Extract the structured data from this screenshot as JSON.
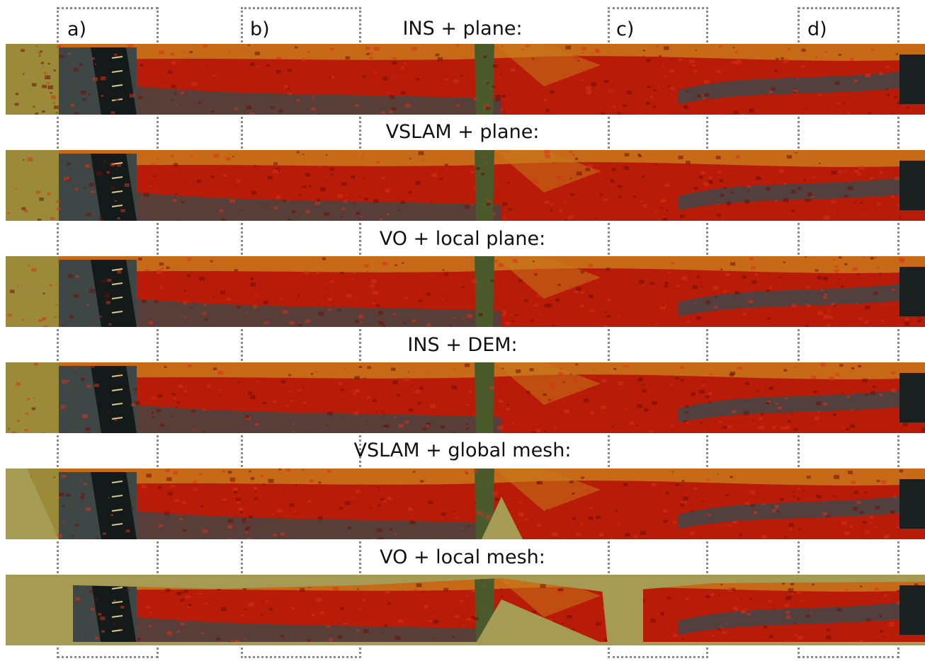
{
  "rows": [
    {
      "title": "INS + plane:",
      "variant": "plane"
    },
    {
      "title": "VSLAM + plane:",
      "variant": "plane"
    },
    {
      "title": "VO + local plane:",
      "variant": "plane"
    },
    {
      "title": "INS + DEM:",
      "variant": "plane"
    },
    {
      "title": "VSLAM + global mesh:",
      "variant": "global-mesh"
    },
    {
      "title": "VO + local mesh:",
      "variant": "local-mesh"
    }
  ],
  "regions": [
    {
      "label": "a)"
    },
    {
      "label": "b)"
    },
    {
      "label": "c)"
    },
    {
      "label": "d)"
    }
  ],
  "colors": {
    "vegetation_red": "#b81c08",
    "dark_red": "#6e0f05",
    "olive_fill": "#a59b55",
    "orange": "#c8781a",
    "asphalt": "#3e4746",
    "box_dotted": "#8a8a8a"
  }
}
